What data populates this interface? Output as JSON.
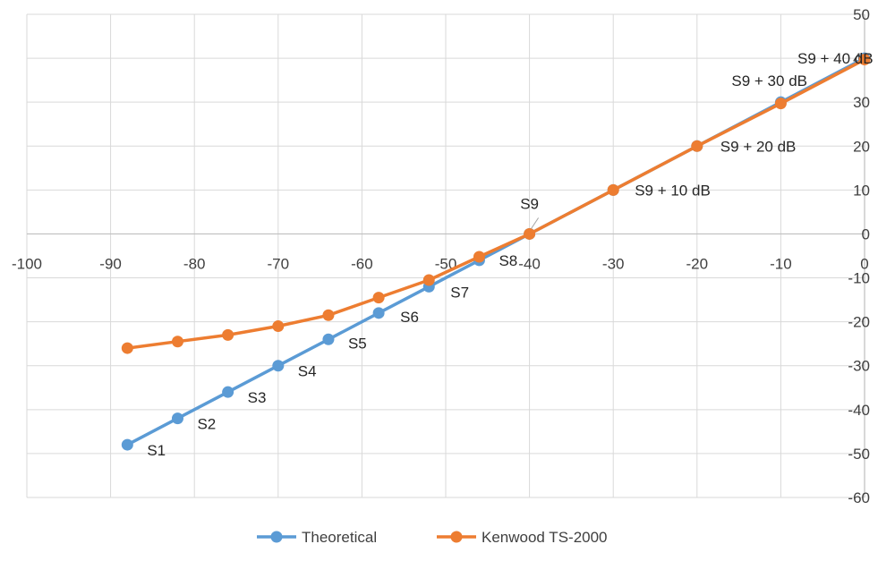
{
  "chart_data": {
    "type": "line",
    "title": "",
    "xlabel": "",
    "ylabel": "",
    "xlim": [
      -100,
      0
    ],
    "ylim": [
      -60,
      50
    ],
    "x_ticks": [
      -100,
      -90,
      -80,
      -70,
      -60,
      -50,
      -40,
      -30,
      -20,
      -10,
      0
    ],
    "y_ticks": [
      50,
      40,
      30,
      20,
      10,
      0,
      -10,
      -20,
      -30,
      -40,
      -50,
      -60
    ],
    "grid": true,
    "legend_position": "bottom",
    "series": [
      {
        "name": "Theoretical",
        "color": "#5B9BD5",
        "points": [
          {
            "x": -88,
            "y": -48,
            "label": "S1"
          },
          {
            "x": -82,
            "y": -42,
            "label": "S2"
          },
          {
            "x": -76,
            "y": -36,
            "label": "S3"
          },
          {
            "x": -70,
            "y": -30,
            "label": "S4"
          },
          {
            "x": -64,
            "y": -24,
            "label": "S5"
          },
          {
            "x": -58,
            "y": -18,
            "label": "S6"
          },
          {
            "x": -52,
            "y": -12,
            "label": "S7"
          },
          {
            "x": -46,
            "y": -6,
            "label": "S8"
          },
          {
            "x": -40,
            "y": 0,
            "label": "S9"
          },
          {
            "x": -30,
            "y": 10,
            "label": "S9 + 10 dB"
          },
          {
            "x": -20,
            "y": 20,
            "label": "S9 + 20 dB"
          },
          {
            "x": -10,
            "y": 30,
            "label": "S9 + 30 dB"
          },
          {
            "x": 0,
            "y": 40,
            "label": "S9 + 40 dB"
          }
        ]
      },
      {
        "name": "Kenwood TS-2000",
        "color": "#ED7D31",
        "points": [
          {
            "x": -88,
            "y": -26
          },
          {
            "x": -82,
            "y": -24.5
          },
          {
            "x": -76,
            "y": -23
          },
          {
            "x": -70,
            "y": -21
          },
          {
            "x": -64,
            "y": -18.5
          },
          {
            "x": -58,
            "y": -14.5
          },
          {
            "x": -52,
            "y": -10.5
          },
          {
            "x": -46,
            "y": -5.2
          },
          {
            "x": -40,
            "y": 0
          },
          {
            "x": -30,
            "y": 10
          },
          {
            "x": -20,
            "y": 20
          },
          {
            "x": -10,
            "y": 29.7
          },
          {
            "x": 0,
            "y": 39.7
          }
        ]
      }
    ]
  }
}
